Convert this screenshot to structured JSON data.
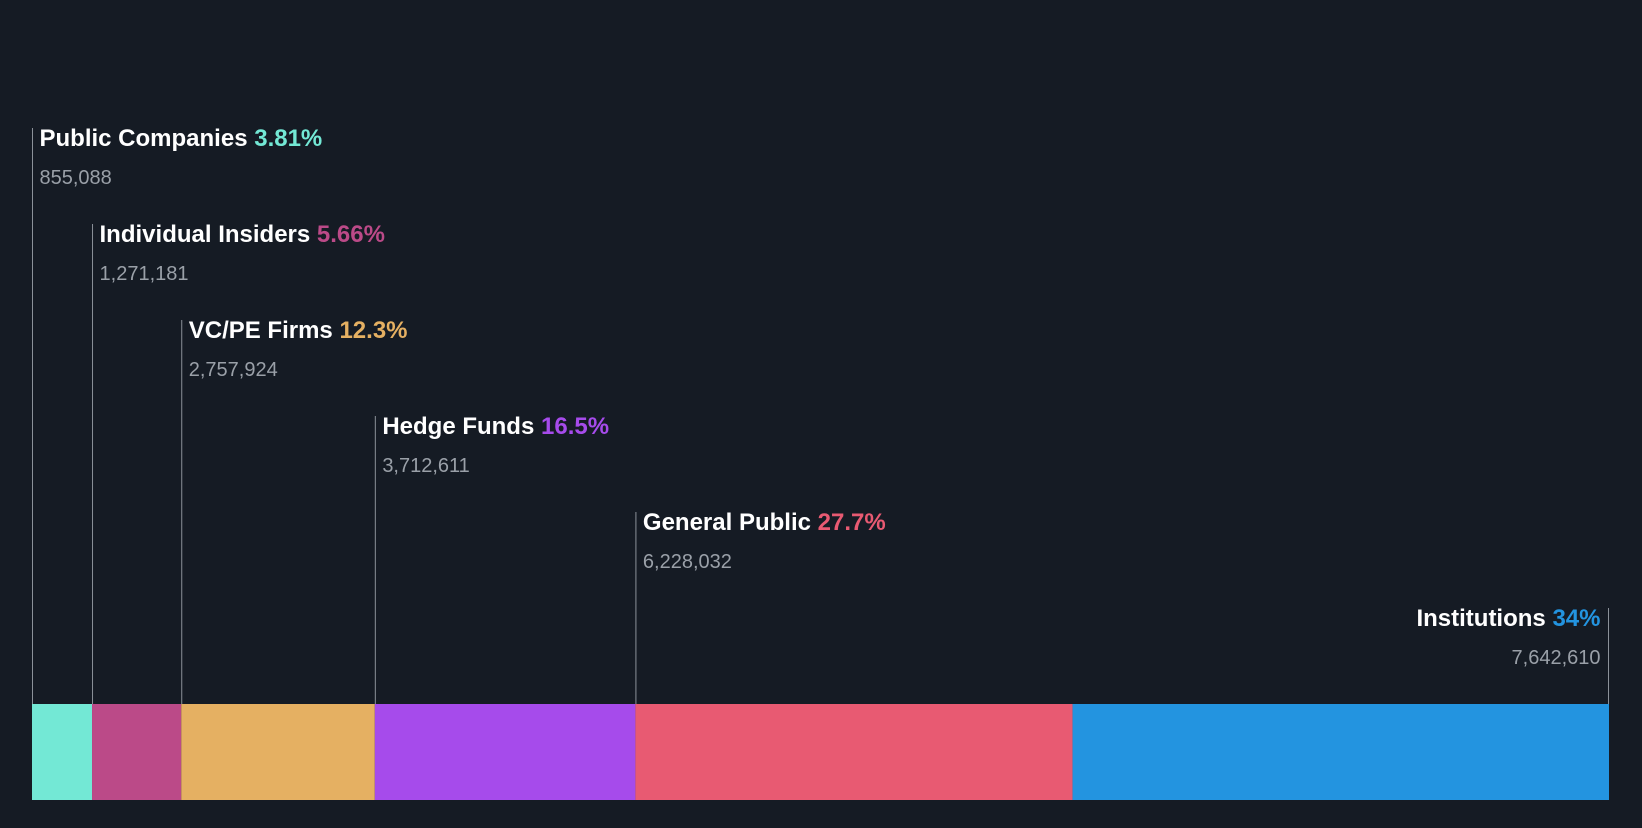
{
  "chart_data": {
    "type": "bar",
    "subtype": "stacked-horizontal-ownership",
    "title": "",
    "unit": "shares",
    "categories": [
      "Public Companies",
      "Individual Insiders",
      "VC/PE Firms",
      "Hedge Funds",
      "General Public",
      "Institutions"
    ],
    "values": [
      855088,
      1271181,
      2757924,
      3712611,
      6228032,
      7642610
    ],
    "value_labels": [
      "855,088",
      "1,271,181",
      "2,757,924",
      "3,712,611",
      "6,228,032",
      "7,642,610"
    ],
    "percent_labels": [
      "3.81%",
      "5.66%",
      "12.3%",
      "16.5%",
      "27.7%",
      "34%"
    ],
    "colors": [
      "#73e8d5",
      "#bb4a88",
      "#e5b062",
      "#a64beb",
      "#e85a72",
      "#2394e0"
    ],
    "legend": "none",
    "grid": false
  }
}
